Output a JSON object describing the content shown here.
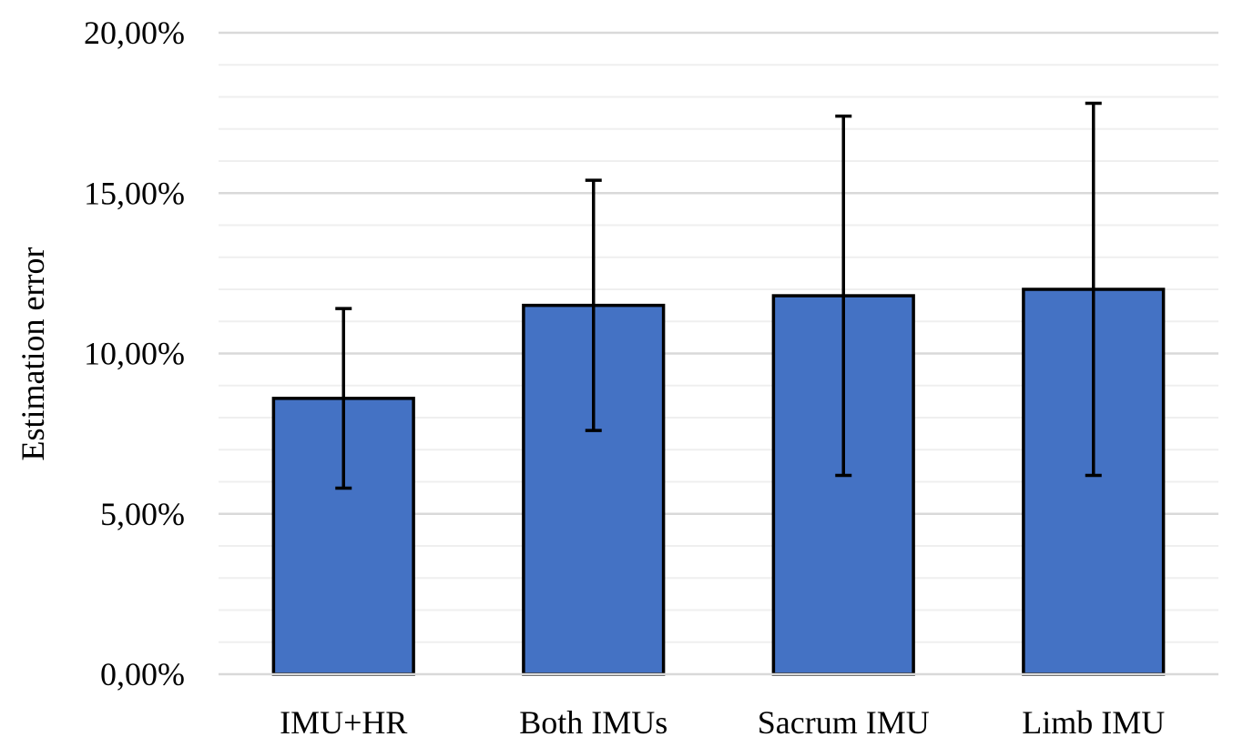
{
  "chart_data": {
    "type": "bar",
    "title": "",
    "xlabel": "",
    "ylabel": "Estimation error",
    "categories": [
      "IMU+HR",
      "Both IMUs",
      "Sacrum IMU",
      "Limb IMU"
    ],
    "series": [
      {
        "values": [
          0.086,
          0.115,
          0.118,
          0.12
        ],
        "error_low": [
          0.058,
          0.076,
          0.062,
          0.062
        ],
        "error_high": [
          0.114,
          0.154,
          0.174,
          0.178
        ],
        "color": "#4472c4"
      }
    ],
    "ylim": [
      0,
      0.2
    ],
    "yticks": [
      0,
      0.05,
      0.1,
      0.15,
      0.2
    ],
    "ytick_labels": [
      "0,00%",
      "5,00%",
      "10,00%",
      "15,00%",
      "20,00%"
    ],
    "minor_step": 0.01,
    "grid": true,
    "legend": "none"
  }
}
